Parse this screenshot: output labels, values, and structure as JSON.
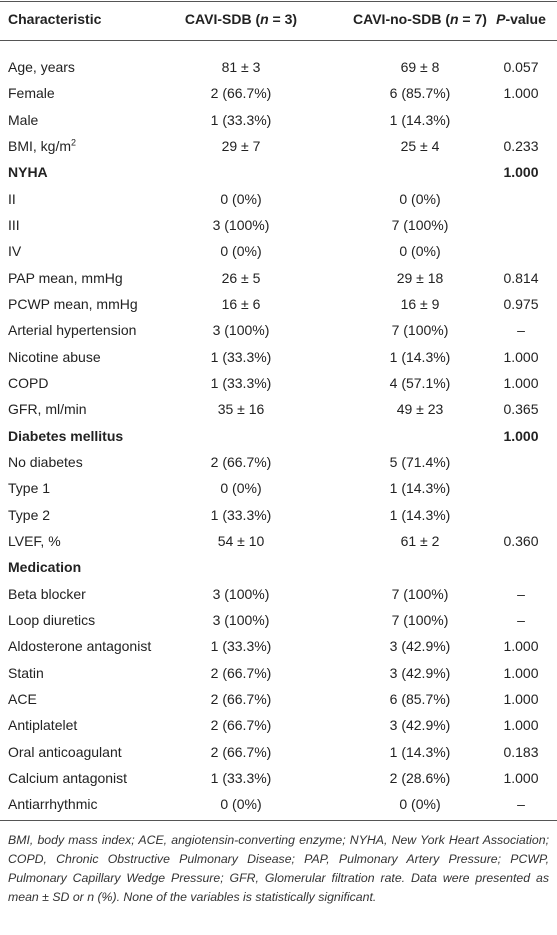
{
  "table": {
    "header": [
      [
        {
          "text": "Characteristic"
        }
      ],
      [
        {
          "text": "CAVI-SDB ("
        },
        {
          "text": "n",
          "style": "italic"
        },
        {
          "text": " = 3)"
        }
      ],
      [
        {
          "text": "CAVI-no-SDB ("
        },
        {
          "text": "n",
          "style": "italic"
        },
        {
          "text": " = 7)"
        }
      ],
      [
        {
          "text": "P",
          "style": "italic"
        },
        {
          "text": "-value"
        }
      ]
    ],
    "rows": [
      {
        "cells": [
          "Age, years",
          "81 ± 3",
          "69 ± 8",
          "0.057"
        ]
      },
      {
        "cells": [
          "Female",
          "2 (66.7%)",
          "6 (85.7%)",
          "1.000"
        ]
      },
      {
        "cells": [
          "Male",
          "1 (33.3%)",
          "1 (14.3%)",
          null
        ]
      },
      {
        "cells": [
          [
            {
              "text": "BMI, kg/m"
            },
            {
              "text": "2",
              "style": "sup"
            }
          ],
          "29 ± 7",
          "25 ± 4",
          "0.233"
        ]
      },
      {
        "cells": [
          "NYHA",
          null,
          null,
          "1.000"
        ],
        "bold": true
      },
      {
        "cells": [
          "II",
          "0 (0%)",
          "0 (0%)",
          null
        ]
      },
      {
        "cells": [
          "III",
          "3 (100%)",
          "7 (100%)",
          null
        ]
      },
      {
        "cells": [
          "IV",
          "0 (0%)",
          "0 (0%)",
          null
        ]
      },
      {
        "cells": [
          "PAP mean, mmHg",
          "26 ± 5",
          "29 ± 18",
          "0.814"
        ]
      },
      {
        "cells": [
          "PCWP mean, mmHg",
          "16 ± 6",
          "16 ± 9",
          "0.975"
        ]
      },
      {
        "cells": [
          "Arterial hypertension",
          "3 (100%)",
          "7 (100%)",
          "–"
        ]
      },
      {
        "cells": [
          "Nicotine abuse",
          "1 (33.3%)",
          "1 (14.3%)",
          "1.000"
        ]
      },
      {
        "cells": [
          "COPD",
          "1 (33.3%)",
          "4 (57.1%)",
          "1.000"
        ]
      },
      {
        "cells": [
          "GFR, ml/min",
          "35 ± 16",
          "49 ± 23",
          "0.365"
        ]
      },
      {
        "cells": [
          "Diabetes mellitus",
          null,
          null,
          "1.000"
        ],
        "bold": true
      },
      {
        "cells": [
          "No diabetes",
          "2 (66.7%)",
          "5 (71.4%)",
          null
        ]
      },
      {
        "cells": [
          "Type 1",
          "0 (0%)",
          "1 (14.3%)",
          null
        ]
      },
      {
        "cells": [
          "Type 2",
          "1 (33.3%)",
          "1 (14.3%)",
          null
        ]
      },
      {
        "cells": [
          "LVEF, %",
          "54 ± 10",
          "61 ± 2",
          "0.360"
        ]
      },
      {
        "cells": [
          "Medication",
          null,
          null,
          null
        ],
        "bold": true
      },
      {
        "cells": [
          "Beta blocker",
          "3 (100%)",
          "7 (100%)",
          "–"
        ]
      },
      {
        "cells": [
          "Loop diuretics",
          "3 (100%)",
          "7 (100%)",
          "–"
        ]
      },
      {
        "cells": [
          "Aldosterone antagonist",
          "1 (33.3%)",
          "3 (42.9%)",
          "1.000"
        ]
      },
      {
        "cells": [
          "Statin",
          "2 (66.7%)",
          "3 (42.9%)",
          "1.000"
        ]
      },
      {
        "cells": [
          "ACE",
          "2 (66.7%)",
          "6 (85.7%)",
          "1.000"
        ]
      },
      {
        "cells": [
          "Antiplatelet",
          "2 (66.7%)",
          "3 (42.9%)",
          "1.000"
        ]
      },
      {
        "cells": [
          "Oral anticoagulant",
          "2 (66.7%)",
          "1 (14.3%)",
          "0.183"
        ]
      },
      {
        "cells": [
          "Calcium antagonist",
          "1 (33.3%)",
          "2 (28.6%)",
          "1.000"
        ]
      },
      {
        "cells": [
          "Antiarrhythmic",
          "0 (0%)",
          "0 (0%)",
          "–"
        ]
      }
    ],
    "footnote": "BMI, body mass index; ACE, angiotensin-converting enzyme; NYHA, New York Heart Association; COPD, Chronic Obstructive Pulmonary Disease; PAP, Pulmonary Artery Pressure; PCWP, Pulmonary Capillary Wedge Pressure; GFR, Glomerular filtration rate. Data were presented as mean ± SD or n (%). None of the variables is statistically significant."
  }
}
